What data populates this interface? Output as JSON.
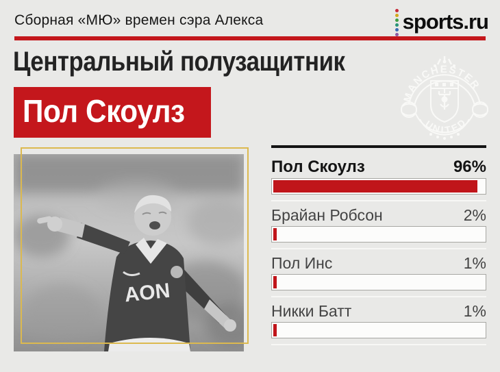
{
  "header": {
    "kicker": "Сборная «МЮ» времен сэра Алекса",
    "brand": "sports.ru"
  },
  "logo": {
    "dot_colors": [
      "#c62b39",
      "#d3a81c",
      "#3f9d44",
      "#2a9477",
      "#3b6cb4",
      "#8c5ca3"
    ]
  },
  "title": {
    "position": "Центральный полузащитник",
    "player": "Пол Скоулз"
  },
  "crest": {
    "top_text": "MANCHESTER",
    "bottom_text": "UNITED"
  },
  "photo": {
    "shirt_sponsor": "AON"
  },
  "poll": {
    "rows": [
      {
        "name": "Пол Скоулз",
        "percent": "96%",
        "value": 96
      },
      {
        "name": "Брайан Робсон",
        "percent": "2%",
        "value": 2
      },
      {
        "name": "Пол Инс",
        "percent": "1%",
        "value": 1
      },
      {
        "name": "Никки Батт",
        "percent": "1%",
        "value": 1
      }
    ]
  },
  "colors": {
    "accent_red": "#c4171c",
    "bar_red": "#c0151a",
    "gold_frame": "#dcb94f",
    "background": "#e9e9e7"
  },
  "chart_data": {
    "type": "bar",
    "title": "Центральный полузащитник — Сборная «МЮ» времен сэра Алекса",
    "categories": [
      "Пол Скоулз",
      "Брайан Робсон",
      "Пол Инс",
      "Никки Батт"
    ],
    "values": [
      96,
      2,
      1,
      1
    ],
    "unit": "%",
    "xlabel": "",
    "ylabel": "",
    "xlim": [
      0,
      100
    ],
    "orientation": "horizontal",
    "grid": false,
    "legend": false
  }
}
